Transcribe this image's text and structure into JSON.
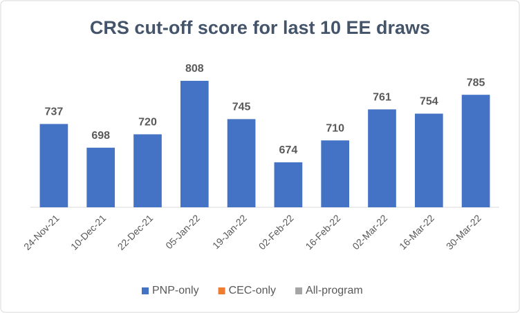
{
  "chart_data": {
    "type": "bar",
    "title": "CRS cut-off score for last 10 EE draws",
    "categories": [
      "24-Nov-21",
      "10-Dec-21",
      "22-Dec-21",
      "05-Jan-22",
      "19-Jan-22",
      "02-Feb-22",
      "16-Feb-22",
      "02-Mar-22",
      "16-Mar-22",
      "30-Mar-22"
    ],
    "series": [
      {
        "name": "PNP-only",
        "color": "#4472c4",
        "values": [
          737,
          698,
          720,
          808,
          745,
          674,
          710,
          761,
          754,
          785
        ]
      },
      {
        "name": "CEC-only",
        "color": "#ed7d31",
        "values": [
          null,
          null,
          null,
          null,
          null,
          null,
          null,
          null,
          null,
          null
        ]
      },
      {
        "name": "All-program",
        "color": "#a5a5a5",
        "values": [
          null,
          null,
          null,
          null,
          null,
          null,
          null,
          null,
          null,
          null
        ]
      }
    ],
    "ylim": [
      600,
      850
    ],
    "grid": false,
    "legend": "bottom"
  }
}
